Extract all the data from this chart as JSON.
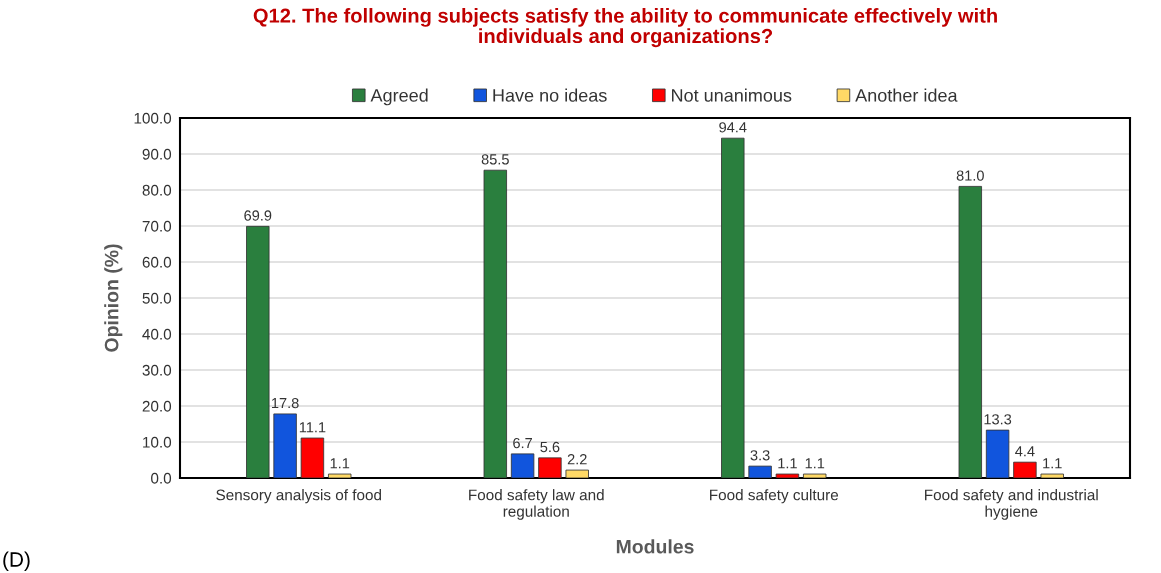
{
  "chart_data": {
    "type": "bar",
    "title": "Q12. The following subjects satisfy the ability to communicate effectively with\nindividuals and organizations?",
    "categories": [
      "Sensory analysis of food",
      "Food safety law and\nregulation",
      "Food safety culture",
      "Food safety and industrial\nhygiene"
    ],
    "series": [
      {
        "name": "Agreed",
        "color": "#2a7f3e",
        "values": [
          69.9,
          85.5,
          94.4,
          81.0
        ],
        "value_labels": [
          "69.9",
          "85.5",
          "94.4",
          "81.0"
        ]
      },
      {
        "name": "Have no ideas",
        "color": "#1155dd",
        "values": [
          17.8,
          6.7,
          3.3,
          13.3
        ],
        "value_labels": [
          "17.8",
          "6.7",
          "3.3",
          "13.3"
        ]
      },
      {
        "name": "Not unanimous",
        "color": "#ff0000",
        "values": [
          11.1,
          5.6,
          1.1,
          4.4
        ],
        "value_labels": [
          "11.1",
          "5.6",
          "1.1",
          "4.4"
        ]
      },
      {
        "name": "Another idea",
        "color": "#ffd966",
        "values": [
          1.1,
          2.2,
          1.1,
          1.1
        ],
        "value_labels": [
          "1.1",
          "2.2",
          "1.1",
          "1.1"
        ]
      }
    ],
    "xlabel": "Modules",
    "ylabel": "Opinion (%)",
    "ylim": [
      0,
      100
    ],
    "yticks": [
      {
        "value": 0,
        "label": "0.0"
      },
      {
        "value": 10,
        "label": "10.0"
      },
      {
        "value": 20,
        "label": "20.0"
      },
      {
        "value": 30,
        "label": "30.0"
      },
      {
        "value": 40,
        "label": "40.0"
      },
      {
        "value": 50,
        "label": "50.0"
      },
      {
        "value": 60,
        "label": "60.0"
      },
      {
        "value": 70,
        "label": "70.0"
      },
      {
        "value": 80,
        "label": "80.0"
      },
      {
        "value": 90,
        "label": "90.0"
      },
      {
        "value": 100,
        "label": "100.0"
      }
    ],
    "grid": "y",
    "legend": "top",
    "annotations": [
      "(D)"
    ]
  }
}
